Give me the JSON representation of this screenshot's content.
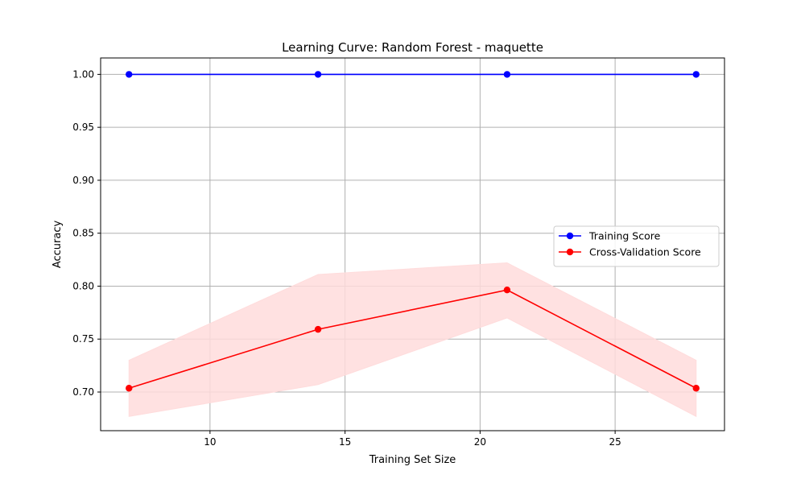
{
  "chart_data": {
    "type": "line",
    "title": "Learning Curve: Random Forest - maquette",
    "xlabel": "Training Set Size",
    "ylabel": "Accuracy",
    "xlim": [
      5.95,
      29.05
    ],
    "ylim": [
      0.6635,
      1.0155
    ],
    "xticks": [
      10,
      15,
      20,
      25
    ],
    "yticks": [
      0.7,
      0.75,
      0.8,
      0.85,
      0.9,
      0.95,
      1.0
    ],
    "xtick_labels": [
      "10",
      "15",
      "20",
      "25"
    ],
    "ytick_labels": [
      "0.70",
      "0.75",
      "0.80",
      "0.85",
      "0.90",
      "0.95",
      "1.00"
    ],
    "grid": true,
    "legend_position": "center-right",
    "x": [
      7,
      14,
      21,
      28
    ],
    "series": [
      {
        "name": "Training Score",
        "color": "#0000ff",
        "values": [
          1.0,
          1.0,
          1.0,
          1.0
        ],
        "band_lower": [
          1.0,
          1.0,
          1.0,
          1.0
        ],
        "band_upper": [
          1.0,
          1.0,
          1.0,
          1.0
        ],
        "marker": "circle"
      },
      {
        "name": "Cross-Validation Score",
        "color": "#ff0000",
        "band_color": "#ffdcdc",
        "values": [
          0.7036,
          0.7592,
          0.7964,
          0.7036
        ],
        "band_lower": [
          0.677,
          0.707,
          0.77,
          0.677
        ],
        "band_upper": [
          0.73,
          0.811,
          0.822,
          0.73
        ],
        "marker": "circle"
      }
    ]
  }
}
